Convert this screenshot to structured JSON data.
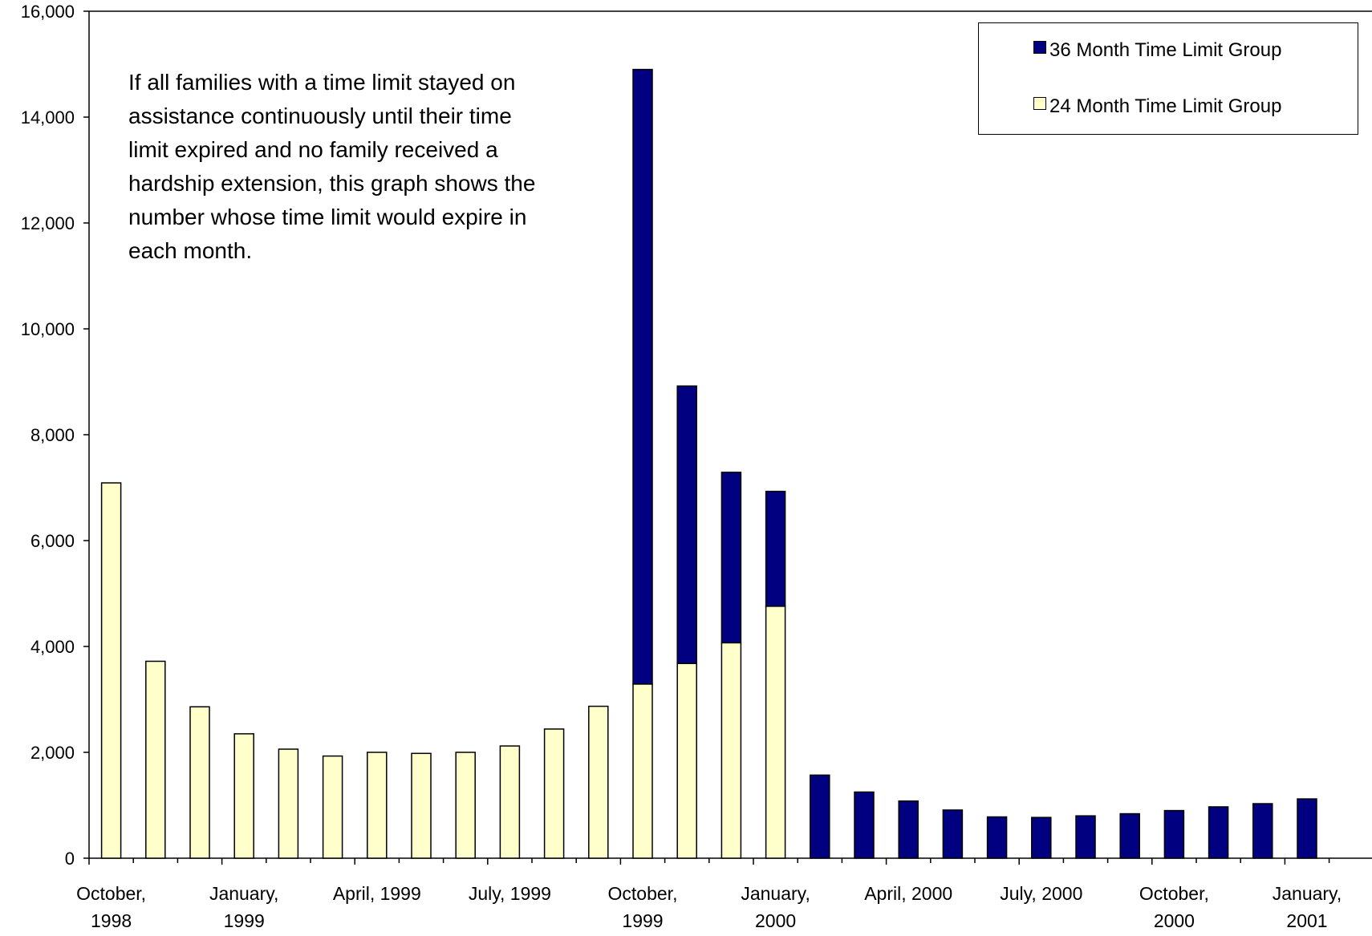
{
  "chart_data": {
    "type": "bar",
    "stacked": true,
    "title": "",
    "xlabel": "",
    "ylabel": "",
    "ylim": [
      0,
      16000
    ],
    "yticks": [
      0,
      2000,
      4000,
      6000,
      8000,
      10000,
      12000,
      14000,
      16000
    ],
    "ytick_labels": [
      "0",
      "2,000",
      "4,000",
      "6,000",
      "8,000",
      "10,000",
      "12,000",
      "14,000",
      "16,000"
    ],
    "grid": false,
    "legend_position": "top-right",
    "categories": [
      "Oct 1998",
      "Nov 1998",
      "Dec 1998",
      "Jan 1999",
      "Feb 1999",
      "Mar 1999",
      "Apr 1999",
      "May 1999",
      "Jun 1999",
      "Jul 1999",
      "Aug 1999",
      "Sep 1999",
      "Oct 1999",
      "Nov 1999",
      "Dec 1999",
      "Jan 2000",
      "Feb 2000",
      "Mar 2000",
      "Apr 2000",
      "May 2000",
      "Jun 2000",
      "Jul 2000",
      "Aug 2000",
      "Sep 2000",
      "Oct 2000",
      "Nov 2000",
      "Dec 2000",
      "Jan 2001"
    ],
    "xtick_labels": [
      {
        "index": 0,
        "lines": [
          "October,",
          "1998"
        ]
      },
      {
        "index": 3,
        "lines": [
          "January,",
          "1999"
        ]
      },
      {
        "index": 6,
        "lines": [
          "April, 1999"
        ]
      },
      {
        "index": 9,
        "lines": [
          "July, 1999"
        ]
      },
      {
        "index": 12,
        "lines": [
          "October,",
          "1999"
        ]
      },
      {
        "index": 15,
        "lines": [
          "January,",
          "2000"
        ]
      },
      {
        "index": 18,
        "lines": [
          "April, 2000"
        ]
      },
      {
        "index": 21,
        "lines": [
          "July, 2000"
        ]
      },
      {
        "index": 24,
        "lines": [
          "October,",
          "2000"
        ]
      },
      {
        "index": 27,
        "lines": [
          "January,",
          "2001"
        ]
      }
    ],
    "series": [
      {
        "name": "24 Month Time Limit Group",
        "color": "#ffffcc",
        "values": [
          7090,
          3720,
          2860,
          2350,
          2060,
          1930,
          2000,
          1980,
          2000,
          2120,
          2440,
          2870,
          3290,
          3680,
          4070,
          4760,
          0,
          0,
          0,
          0,
          0,
          0,
          0,
          0,
          0,
          0,
          0,
          0
        ]
      },
      {
        "name": "36 Month Time Limit Group",
        "color": "#000080",
        "values": [
          0,
          0,
          0,
          0,
          0,
          0,
          0,
          0,
          0,
          0,
          0,
          0,
          11610,
          5240,
          3220,
          2170,
          1570,
          1250,
          1080,
          910,
          780,
          770,
          800,
          840,
          900,
          970,
          1030,
          1120
        ]
      }
    ],
    "annotation_lines": [
      "If all families with a time limit stayed on",
      "assistance continuously until their time",
      "limit expired and no family received a",
      "hardship extension, this graph shows the",
      "number whose time limit would expire in",
      "each month."
    ]
  }
}
